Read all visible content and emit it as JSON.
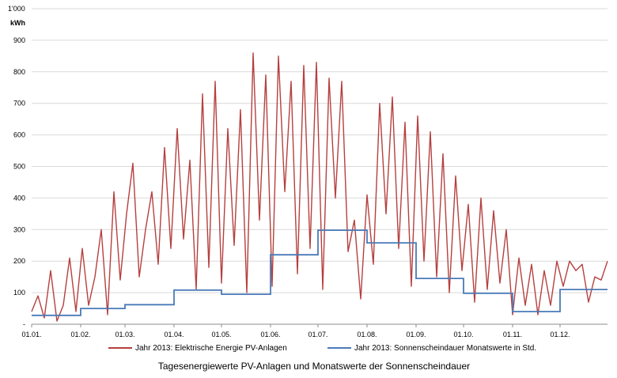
{
  "chart_data": {
    "type": "line",
    "title": "Tagesenergiewerte PV-Anlagen und Monatswerte der Sonnenscheindauer",
    "y_unit_top": "1'000",
    "ylabel": "kWh",
    "ylim": [
      0,
      1000
    ],
    "yticks": [
      {
        "value": 0,
        "label": "-"
      },
      {
        "value": 100,
        "label": "100"
      },
      {
        "value": 200,
        "label": "200"
      },
      {
        "value": 300,
        "label": "300"
      },
      {
        "value": 400,
        "label": "400"
      },
      {
        "value": 500,
        "label": "500"
      },
      {
        "value": 600,
        "label": "600"
      },
      {
        "value": 700,
        "label": "700"
      },
      {
        "value": 800,
        "label": "800"
      },
      {
        "value": 900,
        "label": "900"
      }
    ],
    "xlim": [
      1,
      365
    ],
    "xticks": [
      {
        "day": 1,
        "label": "01.01."
      },
      {
        "day": 32,
        "label": "01.02."
      },
      {
        "day": 60,
        "label": "01.03."
      },
      {
        "day": 91,
        "label": "01.04."
      },
      {
        "day": 121,
        "label": "01.05."
      },
      {
        "day": 152,
        "label": "01.06."
      },
      {
        "day": 182,
        "label": "01.07."
      },
      {
        "day": 213,
        "label": "01.08."
      },
      {
        "day": 244,
        "label": "01.09."
      },
      {
        "day": 274,
        "label": "01.10."
      },
      {
        "day": 305,
        "label": "01.11."
      },
      {
        "day": 335,
        "label": "01.12."
      }
    ],
    "grid": true,
    "legend_position": "bottom",
    "series": [
      {
        "name": "Jahr 2013: Elektrische Energie PV-Anlagen",
        "color": "#b5403f",
        "x": [
          1,
          5,
          9,
          13,
          17,
          21,
          25,
          29,
          33,
          37,
          41,
          45,
          49,
          53,
          57,
          61,
          65,
          69,
          73,
          77,
          81,
          85,
          89,
          93,
          97,
          101,
          105,
          109,
          113,
          117,
          121,
          125,
          129,
          133,
          137,
          141,
          145,
          149,
          153,
          157,
          161,
          165,
          169,
          173,
          177,
          181,
          185,
          189,
          193,
          197,
          201,
          205,
          209,
          213,
          217,
          221,
          225,
          229,
          233,
          237,
          241,
          245,
          249,
          253,
          257,
          261,
          265,
          269,
          273,
          277,
          281,
          285,
          289,
          293,
          297,
          301,
          305,
          309,
          313,
          317,
          321,
          325,
          329,
          333,
          337,
          341,
          345,
          349,
          353,
          357,
          361,
          365
        ],
        "values": [
          40,
          90,
          20,
          170,
          10,
          60,
          210,
          40,
          240,
          60,
          150,
          300,
          30,
          420,
          140,
          350,
          510,
          150,
          300,
          420,
          190,
          560,
          240,
          620,
          270,
          520,
          110,
          730,
          180,
          770,
          130,
          620,
          250,
          680,
          100,
          860,
          330,
          790,
          120,
          850,
          420,
          770,
          160,
          820,
          240,
          830,
          110,
          780,
          400,
          770,
          230,
          330,
          80,
          410,
          190,
          700,
          350,
          720,
          240,
          640,
          120,
          660,
          200,
          610,
          150,
          540,
          100,
          470,
          170,
          380,
          70,
          400,
          110,
          360,
          130,
          300,
          30,
          210,
          60,
          190,
          30,
          170,
          60,
          200,
          120,
          200,
          170,
          190,
          70,
          150,
          140,
          200
        ]
      },
      {
        "name": "Jahr 2013: Sonnenscheindauer Monatswerte in Std.",
        "color": "#4a7ab8",
        "steps": [
          {
            "month": "01",
            "value": 28
          },
          {
            "month": "02",
            "value": 50
          },
          {
            "month": "03",
            "value": 62
          },
          {
            "month": "04",
            "value": 108
          },
          {
            "month": "05",
            "value": 95
          },
          {
            "month": "06",
            "value": 220
          },
          {
            "month": "07",
            "value": 298
          },
          {
            "month": "08",
            "value": 258
          },
          {
            "month": "09",
            "value": 145
          },
          {
            "month": "10",
            "value": 98
          },
          {
            "month": "11",
            "value": 40
          },
          {
            "month": "12",
            "value": 110
          }
        ]
      }
    ]
  }
}
